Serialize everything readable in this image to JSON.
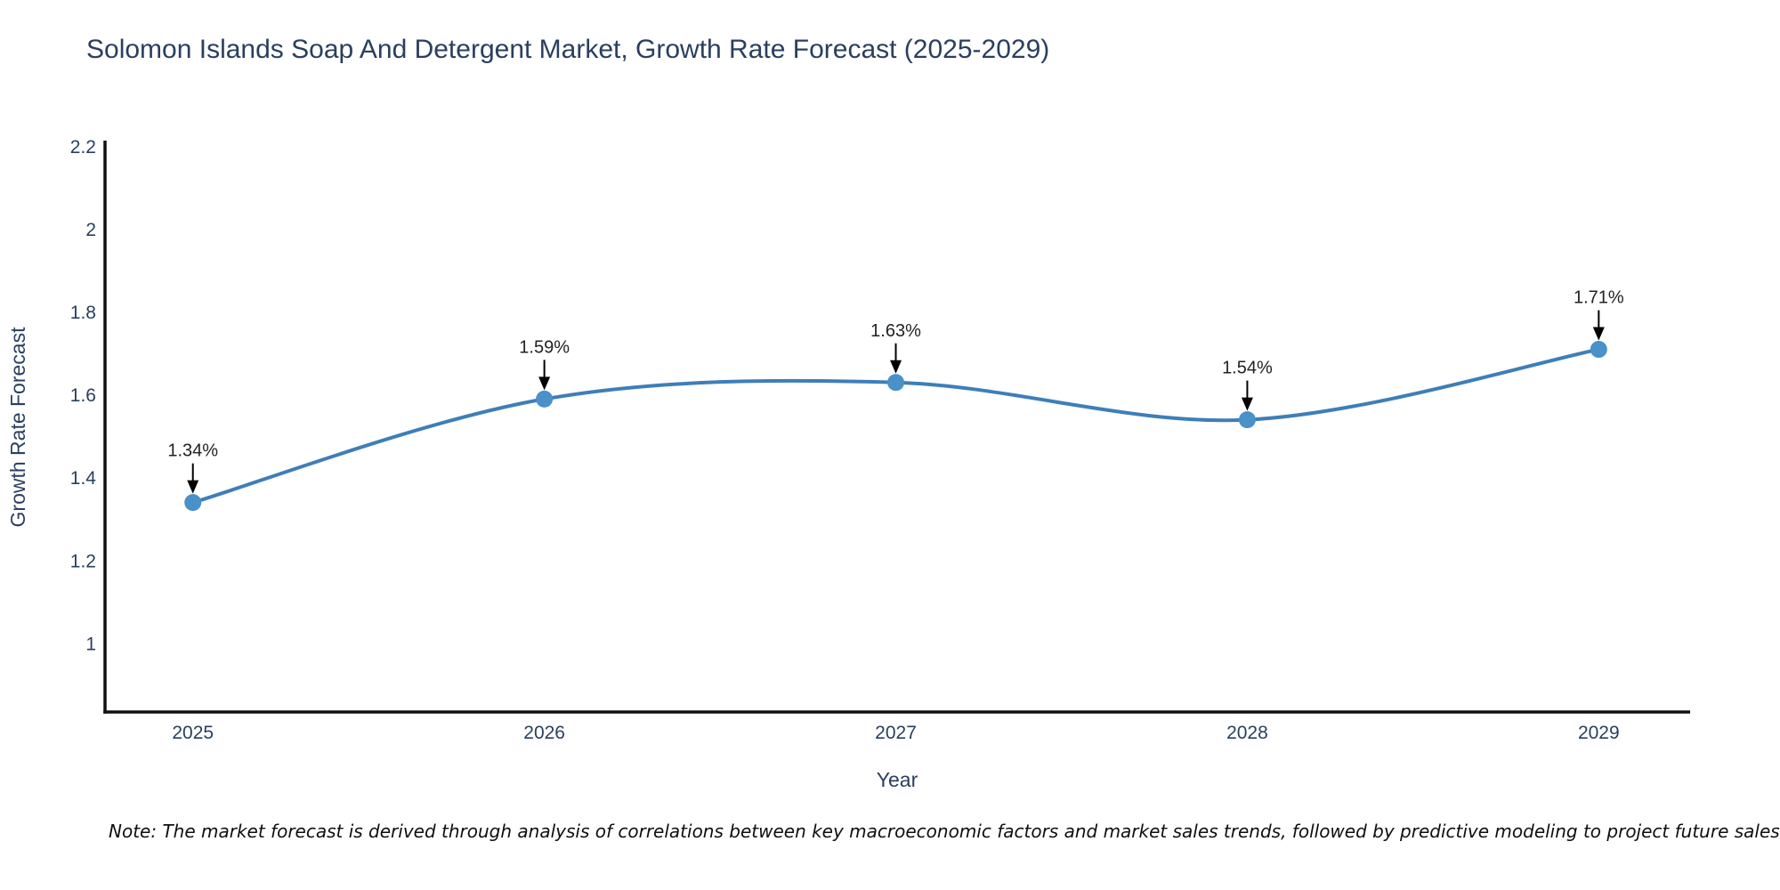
{
  "page": {
    "background": "#ffffff"
  },
  "chart_data": {
    "type": "line",
    "title": "Solomon Islands Soap And Detergent Market, Growth Rate Forecast (2025-2029)",
    "xlabel": "Year",
    "ylabel": "Growth Rate Forecast",
    "x": [
      2025,
      2026,
      2027,
      2028,
      2029
    ],
    "series": [
      {
        "name": "Growth Rate Forecast",
        "values": [
          1.34,
          1.59,
          1.63,
          1.54,
          1.71
        ]
      }
    ],
    "point_labels": [
      "1.34%",
      "1.59%",
      "1.63%",
      "1.54%",
      "1.71%"
    ],
    "xticks": [
      "2025",
      "2026",
      "2027",
      "2028",
      "2029"
    ],
    "xtick_values": [
      2025,
      2026,
      2027,
      2028,
      2029
    ],
    "yticks": [
      "1",
      "1.2",
      "1.4",
      "1.6",
      "1.8",
      "2",
      "2.2"
    ],
    "ytick_values": [
      1,
      1.2,
      1.4,
      1.6,
      1.8,
      2,
      2.2
    ],
    "xlim": [
      2024.75,
      2029.26
    ],
    "ylim": [
      0.834,
      2.21
    ],
    "grid": false,
    "legend": false,
    "line_style": "spline",
    "marker_style": "circle",
    "annotation_arrows": true,
    "colors": {
      "line": "#3e7eb8",
      "marker": "#4a90c9",
      "axis": "#111111",
      "tick_label": "#2a3f5f",
      "title": "#2a3f5f",
      "annotation_text": "#222222",
      "annotation_arrow": "#000000"
    },
    "note": "Note: The market forecast is derived through analysis of correlations between key macroeconomic factors and market sales trends, followed by predictive modeling to project future sales"
  }
}
